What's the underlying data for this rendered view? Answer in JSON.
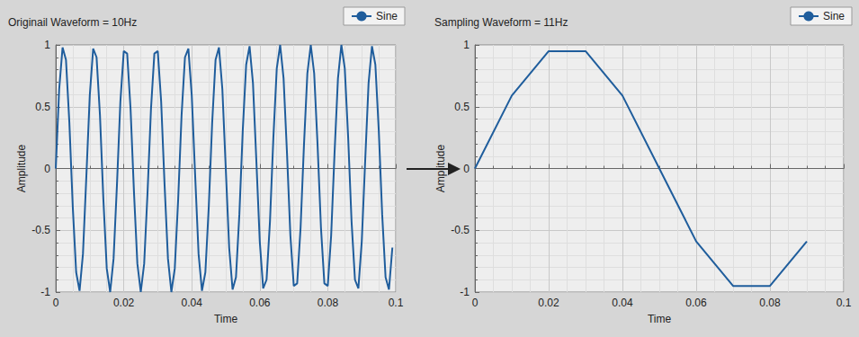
{
  "chart_data": [
    {
      "type": "line",
      "title": "Originail Waveform = 10Hz",
      "xlabel": "Time",
      "ylabel": "Amplitude",
      "x": [
        0,
        0.001,
        0.002,
        0.003,
        0.004,
        0.005,
        0.006,
        0.007,
        0.008,
        0.009,
        0.01,
        0.011,
        0.012,
        0.013,
        0.014,
        0.015,
        0.016,
        0.017,
        0.018,
        0.019,
        0.02,
        0.021,
        0.022,
        0.023,
        0.024,
        0.025,
        0.026,
        0.027,
        0.028,
        0.029,
        0.03,
        0.031,
        0.032,
        0.033,
        0.034,
        0.035,
        0.036,
        0.037,
        0.038,
        0.039,
        0.04,
        0.041,
        0.042,
        0.043,
        0.044,
        0.045,
        0.046,
        0.047,
        0.048,
        0.049,
        0.05,
        0.051,
        0.052,
        0.053,
        0.054,
        0.055,
        0.056,
        0.057,
        0.058,
        0.059,
        0.06,
        0.061,
        0.062,
        0.063,
        0.064,
        0.065,
        0.066,
        0.067,
        0.068,
        0.069,
        0.07,
        0.071,
        0.072,
        0.073,
        0.074,
        0.075,
        0.076,
        0.077,
        0.078,
        0.079,
        0.08,
        0.081,
        0.082,
        0.083,
        0.084,
        0.085,
        0.086,
        0.087,
        0.088,
        0.089,
        0.09,
        0.091,
        0.092,
        0.093,
        0.094,
        0.095,
        0.096,
        0.097,
        0.098,
        0.099
      ],
      "series": [
        {
          "name": "Sine",
          "color": "#1f5d9c",
          "values": [
            0,
            0.64,
            0.98,
            0.88,
            0.37,
            -0.31,
            -0.84,
            -0.99,
            -0.69,
            -0.06,
            0.59,
            0.97,
            0.9,
            0.43,
            -0.25,
            -0.81,
            -1,
            -0.73,
            -0.13,
            0.54,
            0.95,
            0.93,
            0.48,
            -0.19,
            -0.77,
            -1,
            -0.77,
            -0.19,
            0.48,
            0.93,
            0.95,
            0.54,
            -0.13,
            -0.73,
            -1,
            -0.81,
            -0.25,
            0.43,
            0.9,
            0.97,
            0.59,
            -0.06,
            -0.69,
            -0.99,
            -0.84,
            -0.31,
            0.37,
            0.88,
            0.98,
            0.64,
            0,
            -0.64,
            -0.98,
            -0.88,
            -0.37,
            0.31,
            0.84,
            0.99,
            0.69,
            0.06,
            -0.59,
            -0.97,
            -0.9,
            -0.43,
            0.25,
            0.81,
            1,
            0.73,
            0.13,
            -0.54,
            -0.95,
            -0.93,
            -0.48,
            0.19,
            0.77,
            1,
            0.77,
            0.19,
            -0.48,
            -0.93,
            -0.95,
            -0.54,
            0.13,
            0.73,
            1,
            0.81,
            0.25,
            -0.43,
            -0.9,
            -0.97,
            -0.59,
            0.06,
            0.69,
            0.99,
            0.84,
            0.31,
            -0.37,
            -0.88,
            -0.98,
            -0.64
          ]
        }
      ],
      "xlim": [
        0,
        0.1
      ],
      "xticks": [
        0,
        0.02,
        0.04,
        0.06,
        0.08,
        0.1
      ],
      "ylim": [
        -1,
        1
      ],
      "yticks": [
        -1,
        -0.5,
        0,
        0.5,
        1
      ],
      "grid": true,
      "legend": "upper right"
    },
    {
      "type": "line",
      "title": "Sampling Waveform = 11Hz",
      "xlabel": "Time",
      "ylabel": "Amplitude",
      "x": [
        0,
        0.01,
        0.02,
        0.03,
        0.04,
        0.05,
        0.06,
        0.07,
        0.08,
        0.09
      ],
      "series": [
        {
          "name": "Sine",
          "color": "#1f5d9c",
          "values": [
            0,
            0.59,
            0.95,
            0.95,
            0.59,
            0,
            -0.59,
            -0.95,
            -0.95,
            -0.59
          ]
        }
      ],
      "xlim": [
        0,
        0.1
      ],
      "xticks": [
        0,
        0.02,
        0.04,
        0.06,
        0.08,
        0.1
      ],
      "ylim": [
        -1,
        1
      ],
      "yticks": [
        -1,
        -0.5,
        0,
        0.5,
        1
      ],
      "grid": true,
      "legend": "upper right"
    }
  ]
}
